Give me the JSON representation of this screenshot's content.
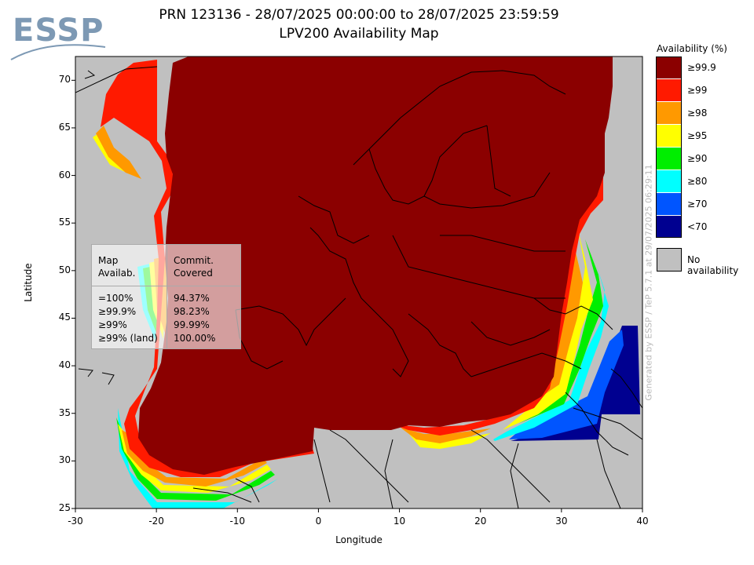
{
  "logo": {
    "text": "ESSP"
  },
  "header": {
    "title_line1": "PRN 123136 - 28/07/2025 00:00:00 to 28/07/2025 23:59:59",
    "title_line2": "LPV200 Availability Map"
  },
  "axes": {
    "xlabel": "Longitude",
    "ylabel": "Latitude",
    "xticks": [
      "-30",
      "-20",
      "-10",
      "0",
      "10",
      "20",
      "30",
      "40"
    ],
    "yticks": [
      "70",
      "65",
      "60",
      "55",
      "50",
      "45",
      "40",
      "35",
      "30",
      "25"
    ],
    "xlim": [
      -30,
      40
    ],
    "ylim": [
      25,
      72.5
    ]
  },
  "legend": {
    "title": "Availability (%)",
    "items": [
      {
        "label": "≥99.9",
        "color": "#8b0000"
      },
      {
        "label": "≥99",
        "color": "#ff1a00"
      },
      {
        "label": "≥98",
        "color": "#ff9900"
      },
      {
        "label": "≥95",
        "color": "#ffff00"
      },
      {
        "label": "≥90",
        "color": "#00ee00"
      },
      {
        "label": "≥80",
        "color": "#00ffff"
      },
      {
        "label": "≥70",
        "color": "#0055ff"
      },
      {
        "label": "<70",
        "color": "#000090"
      }
    ],
    "no_availability": {
      "label": "No availability",
      "color": "#c0c0c0"
    }
  },
  "stats": {
    "header_left": [
      "Map",
      "Availab."
    ],
    "header_right": [
      "Commit.",
      "Covered"
    ],
    "rows": [
      {
        "level": "=100%",
        "value": "94.37%"
      },
      {
        "level": "≥99.9%",
        "value": "98.23%"
      },
      {
        "level": "≥99%",
        "value": "99.99%"
      },
      {
        "level": "≥99% (land)",
        "value": "100.00%"
      }
    ]
  },
  "side_note": "Generated by ESSP / TeP 5.7.1 at 29/07/2025 06:29:11"
}
